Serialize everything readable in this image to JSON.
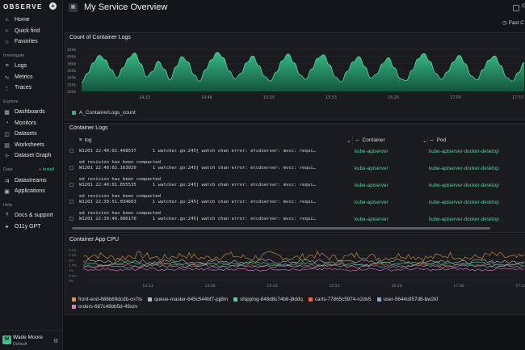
{
  "app": {
    "logo": "OBSERVE",
    "new_button": "+"
  },
  "sidebar": {
    "top_items": [
      {
        "label": "Home",
        "icon": "home-icon"
      },
      {
        "label": "Quick find",
        "icon": "search-icon"
      },
      {
        "label": "Favorites",
        "icon": "star-icon"
      }
    ],
    "investigate_header": "Investigate",
    "investigate_items": [
      {
        "label": "Logs",
        "icon": "logs-icon"
      },
      {
        "label": "Metrics",
        "icon": "metrics-icon"
      },
      {
        "label": "Traces",
        "icon": "traces-icon"
      }
    ],
    "explore_header": "Explore",
    "explore_items": [
      {
        "label": "Dashboards",
        "icon": "dashboard-icon"
      },
      {
        "label": "Monitors",
        "icon": "monitor-icon"
      },
      {
        "label": "Datasets",
        "icon": "dataset-icon"
      },
      {
        "label": "Worksheets",
        "icon": "worksheet-icon"
      },
      {
        "label": "Dataset Graph",
        "icon": "graph-icon"
      }
    ],
    "data_header": "Data",
    "install_label": "+ Install",
    "data_items": [
      {
        "label": "Datastreams",
        "icon": "datastream-icon"
      },
      {
        "label": "Applications",
        "icon": "applications-icon"
      }
    ],
    "help_header": "Help",
    "help_items": [
      {
        "label": "Docs & support",
        "icon": "docs-icon"
      },
      {
        "label": "O11y GPT",
        "icon": "gpt-icon"
      }
    ],
    "user": {
      "name": "Wade Moore",
      "org": "Default",
      "initials": "W"
    }
  },
  "header": {
    "title": "My Service Overview",
    "btn_label": "C",
    "time_range": "Past C"
  },
  "panels": {
    "count_title": "Count of Container Logs",
    "count_legend": "A_ContainerLogs_count",
    "logs_title": "Container Logs",
    "logs_columns": {
      "log": "log",
      "container": "Container",
      "pod": "Pod"
    },
    "cpu_title": "Container App CPU"
  },
  "log_rows": [
    {
      "line1": "W1201 22:40:02.468537      1 watcher.go:245] watch chan error: etcdserver: mvcc: requi…",
      "line2": "ed revision has been compacted",
      "container": "kube-apiserver",
      "pod": "kube-apiserver-docker-desktop"
    },
    {
      "line1": "W1201 22:40:02.163020      1 watcher.go:245] watch chan error: etcdserver: mvcc: requi…",
      "line2": "ed revision has been compacted",
      "container": "kube-apiserver",
      "pod": "kube-apiserver-docker-desktop"
    },
    {
      "line1": "W1201 22:40:01.055535      1 watcher.go:245] watch chan error: etcdserver: mvcc: requi…",
      "line2": "ed revision has been compacted",
      "container": "kube-apiserver",
      "pod": "kube-apiserver-docker-desktop"
    },
    {
      "line1": "W1201 22:39:51.034603      1 watcher.go:245] watch chan error: etcdserver: mvcc: requi…",
      "line2": "ed revision has been compacted",
      "container": "kube-apiserver",
      "pod": "kube-apiserver-docker-desktop"
    },
    {
      "line1": "W1201 22:39:46.986170      1 watcher.go:245] watch chan error: etcdserver: mvcc: requi…",
      "line2": "ed revision has been compacted",
      "container": "kube-apiserver",
      "pod": "kube-apiserver-docker-desktop"
    }
  ],
  "chart_data": [
    {
      "type": "area",
      "title": "Count of Container Logs",
      "ylim": [
        300,
        440
      ],
      "yticks": [
        "440k",
        "400k",
        "380k",
        "360k",
        "340k",
        "320k",
        "300k"
      ],
      "xticks": [
        "14:13",
        "14:46",
        "15:20",
        "15:53",
        "16:26",
        "17:00",
        "17:33"
      ],
      "series": [
        {
          "name": "A_ContainerLogs_count",
          "color": "#2fb37e",
          "values": [
            330,
            360,
            395,
            420,
            405,
            372,
            345,
            378,
            410,
            428,
            392,
            348,
            366,
            400,
            374,
            338,
            382,
            415,
            398,
            356,
            334,
            372,
            405,
            430,
            412,
            368,
            342,
            360,
            396,
            418,
            386,
            350,
            335,
            364,
            402,
            425,
            395,
            355,
            340,
            374,
            410,
            422,
            388,
            348,
            332,
            366,
            398,
            416,
            382,
            344,
            358,
            392,
            412,
            378,
            342,
            336,
            370,
            408,
            426,
            400,
            360,
            340,
            365,
            398,
            420,
            392,
            352,
            338,
            372,
            404,
            418,
            386,
            346,
            334,
            362,
            396
          ]
        }
      ]
    },
    {
      "type": "line",
      "title": "Container App CPU",
      "yticks": [
        "3.1%",
        "2.5%",
        "2%",
        "1.5%",
        "1%",
        "0.5%",
        "0%"
      ],
      "xticks": [
        "14:13",
        "14:46",
        "15:20",
        "15:53",
        "16:26",
        "17:00",
        "17:33"
      ],
      "series": [
        {
          "name": "front-end-686b69dcdb-cn7ts",
          "color": "#d99a3a",
          "base": 0.78,
          "amp": 0.12
        },
        {
          "name": "queue-master-645c544bf7-jqj8m",
          "color": "#b5b5bb",
          "base": 0.62,
          "amp": 0.06
        },
        {
          "name": "shipping-848d8c74b6-j8ddq",
          "color": "#4fd1a0",
          "base": 0.55,
          "amp": 0.05
        },
        {
          "name": "carts-77865c5974-n2dv5",
          "color": "#e86a4a",
          "base": 0.5,
          "amp": 0.05
        },
        {
          "name": "user-5644c857d6-bw2kf",
          "color": "#8ea8d8",
          "base": 0.46,
          "amp": 0.04
        },
        {
          "name": "orders-687c46bb5d-49szv",
          "color": "#e07ad0",
          "base": 0.36,
          "amp": 0.04
        }
      ]
    }
  ]
}
